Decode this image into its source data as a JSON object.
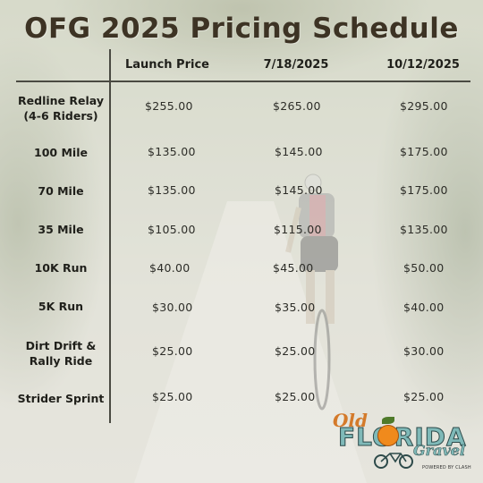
{
  "title": "OFG 2025 Pricing Schedule",
  "columns": [
    "Launch Price",
    "7/18/2025",
    "10/12/2025"
  ],
  "rows": [
    {
      "label_lines": [
        "Redline Relay",
        "(4-6 Riders)"
      ],
      "prices": [
        "$255.00",
        "$265.00",
        "$295.00"
      ]
    },
    {
      "label_lines": [
        "100 Mile"
      ],
      "prices": [
        "$135.00",
        "$145.00",
        "$175.00"
      ]
    },
    {
      "label_lines": [
        "70 Mile"
      ],
      "prices": [
        "$135.00",
        "$145.00",
        "$175.00"
      ]
    },
    {
      "label_lines": [
        "35 Mile"
      ],
      "prices": [
        "$105.00",
        "$115.00",
        "$135.00"
      ]
    },
    {
      "label_lines": [
        "10K Run"
      ],
      "prices": [
        "$40.00",
        "$45.00",
        "$50.00"
      ]
    },
    {
      "label_lines": [
        "5K Run"
      ],
      "prices": [
        "$30.00",
        "$35.00",
        "$40.00"
      ]
    },
    {
      "label_lines": [
        "Dirt Drift &",
        "Rally Ride"
      ],
      "prices": [
        "$25.00",
        "$25.00",
        "$30.00"
      ]
    },
    {
      "label_lines": [
        "Strider Sprint"
      ],
      "prices": [
        "$25.00",
        "$25.00",
        "$25.00"
      ]
    }
  ],
  "logo": {
    "line1": "Old",
    "line2": "FLORIDA",
    "line3": "Gravel",
    "sub": "POWERED BY CLASH"
  },
  "colors": {
    "title": "#3d3324",
    "text": "#1f1f1a",
    "logo_orange": "#f08a1c",
    "logo_teal": "#7fb9b8"
  }
}
